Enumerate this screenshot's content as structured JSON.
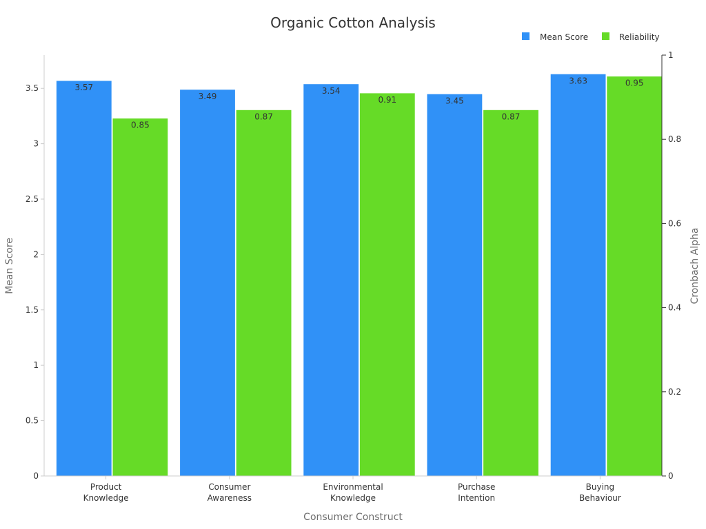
{
  "chart_data": {
    "type": "bar",
    "title": "Organic Cotton Analysis",
    "xlabel": "Consumer Construct",
    "ylabel": "Mean Score",
    "y2label": "Cronbach Alpha",
    "categories": [
      [
        "Product",
        "Knowledge"
      ],
      [
        "Consumer",
        "Awareness"
      ],
      [
        "Environmental",
        "Knowledge"
      ],
      [
        "Purchase",
        "Intention"
      ],
      [
        "Buying",
        "Behaviour"
      ]
    ],
    "series": [
      {
        "name": "Mean Score",
        "axis": "left",
        "color": "#3091f7",
        "values": [
          3.57,
          3.49,
          3.54,
          3.45,
          3.63
        ],
        "labels": [
          "3.57",
          "3.49",
          "3.54",
          "3.45",
          "3.63"
        ]
      },
      {
        "name": "Reliability",
        "axis": "right",
        "color": "#66db27",
        "values": [
          0.85,
          0.87,
          0.91,
          0.87,
          0.95
        ],
        "labels": [
          "0.85",
          "0.87",
          "0.91",
          "0.87",
          "0.95"
        ]
      }
    ],
    "ylim": [
      0,
      3.8
    ],
    "yticks": [
      "0",
      "0.5",
      "1",
      "1.5",
      "2",
      "2.5",
      "3",
      "3.5"
    ],
    "y2lim": [
      0,
      1
    ],
    "y2ticks": [
      "0",
      "0.2",
      "0.4",
      "0.6",
      "0.8",
      "1"
    ],
    "grid": false,
    "legend": "top-right"
  }
}
